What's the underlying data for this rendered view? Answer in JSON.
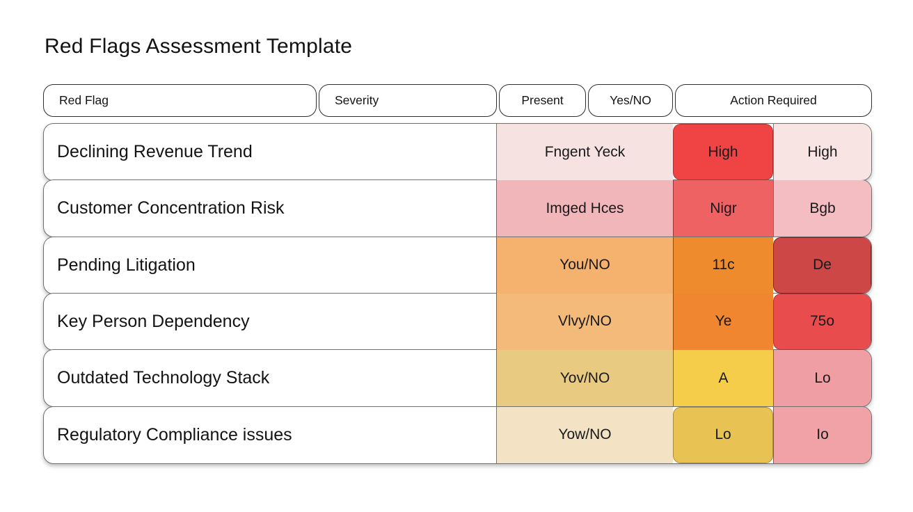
{
  "page": {
    "title": "Red Flags Assessment Template",
    "background": "#ffffff",
    "text_color": "#131314"
  },
  "table": {
    "headers": [
      {
        "id": "red-flag",
        "label": "Red Flag"
      },
      {
        "id": "severity",
        "label": "Severity"
      },
      {
        "id": "present",
        "label": "Present"
      },
      {
        "id": "yes-no",
        "label": "Yes/NO"
      },
      {
        "id": "action-required",
        "label": "Action Required"
      }
    ],
    "column_keys": [
      "present",
      "yesno",
      "action"
    ],
    "rows": [
      {
        "label": "Declining Revenue Trend",
        "cells": [
          {
            "text": "Fngent Yeck",
            "bg": "#f7e2e2"
          },
          {
            "text": "High",
            "bg": "#f04444",
            "rounded": true
          },
          {
            "text": "High",
            "bg": "#f8e5e3"
          }
        ]
      },
      {
        "label": "Customer Concentration Risk",
        "cells": [
          {
            "text": "Imged Hces",
            "bg": "#f1b6ba"
          },
          {
            "text": "Nigr",
            "bg": "#ee6263"
          },
          {
            "text": "Bgb",
            "bg": "#f3bdc2"
          }
        ]
      },
      {
        "label": "Pending Litigation",
        "cells": [
          {
            "text": "You/NO",
            "bg": "#f4b26e"
          },
          {
            "text": "11c",
            "bg": "#ee8c2d"
          },
          {
            "text": "De",
            "bg": "#cc4746",
            "rounded": true,
            "border": "#6e2726"
          }
        ]
      },
      {
        "label": "Key Person Dependency",
        "cells": [
          {
            "text": "Vlvy/NO",
            "bg": "#f3ba7a"
          },
          {
            "text": "Ye",
            "bg": "#f0862f"
          },
          {
            "text": "75o",
            "bg": "#e94c4d",
            "rounded": true
          }
        ]
      },
      {
        "label": "Outdated Technology Stack",
        "cells": [
          {
            "text": "Yov/NO",
            "bg": "#e8cb81"
          },
          {
            "text": "A",
            "bg": "#f5cd4a"
          },
          {
            "text": "Lo",
            "bg": "#ef9fa3"
          }
        ]
      },
      {
        "label": "Regulatory Compliance issues",
        "cells": [
          {
            "text": "Yow/NO",
            "bg": "#f3e3c4"
          },
          {
            "text": "Lo",
            "bg": "#e9c254",
            "rounded": true
          },
          {
            "text": "Io",
            "bg": "#f0a2a7"
          }
        ]
      }
    ]
  }
}
